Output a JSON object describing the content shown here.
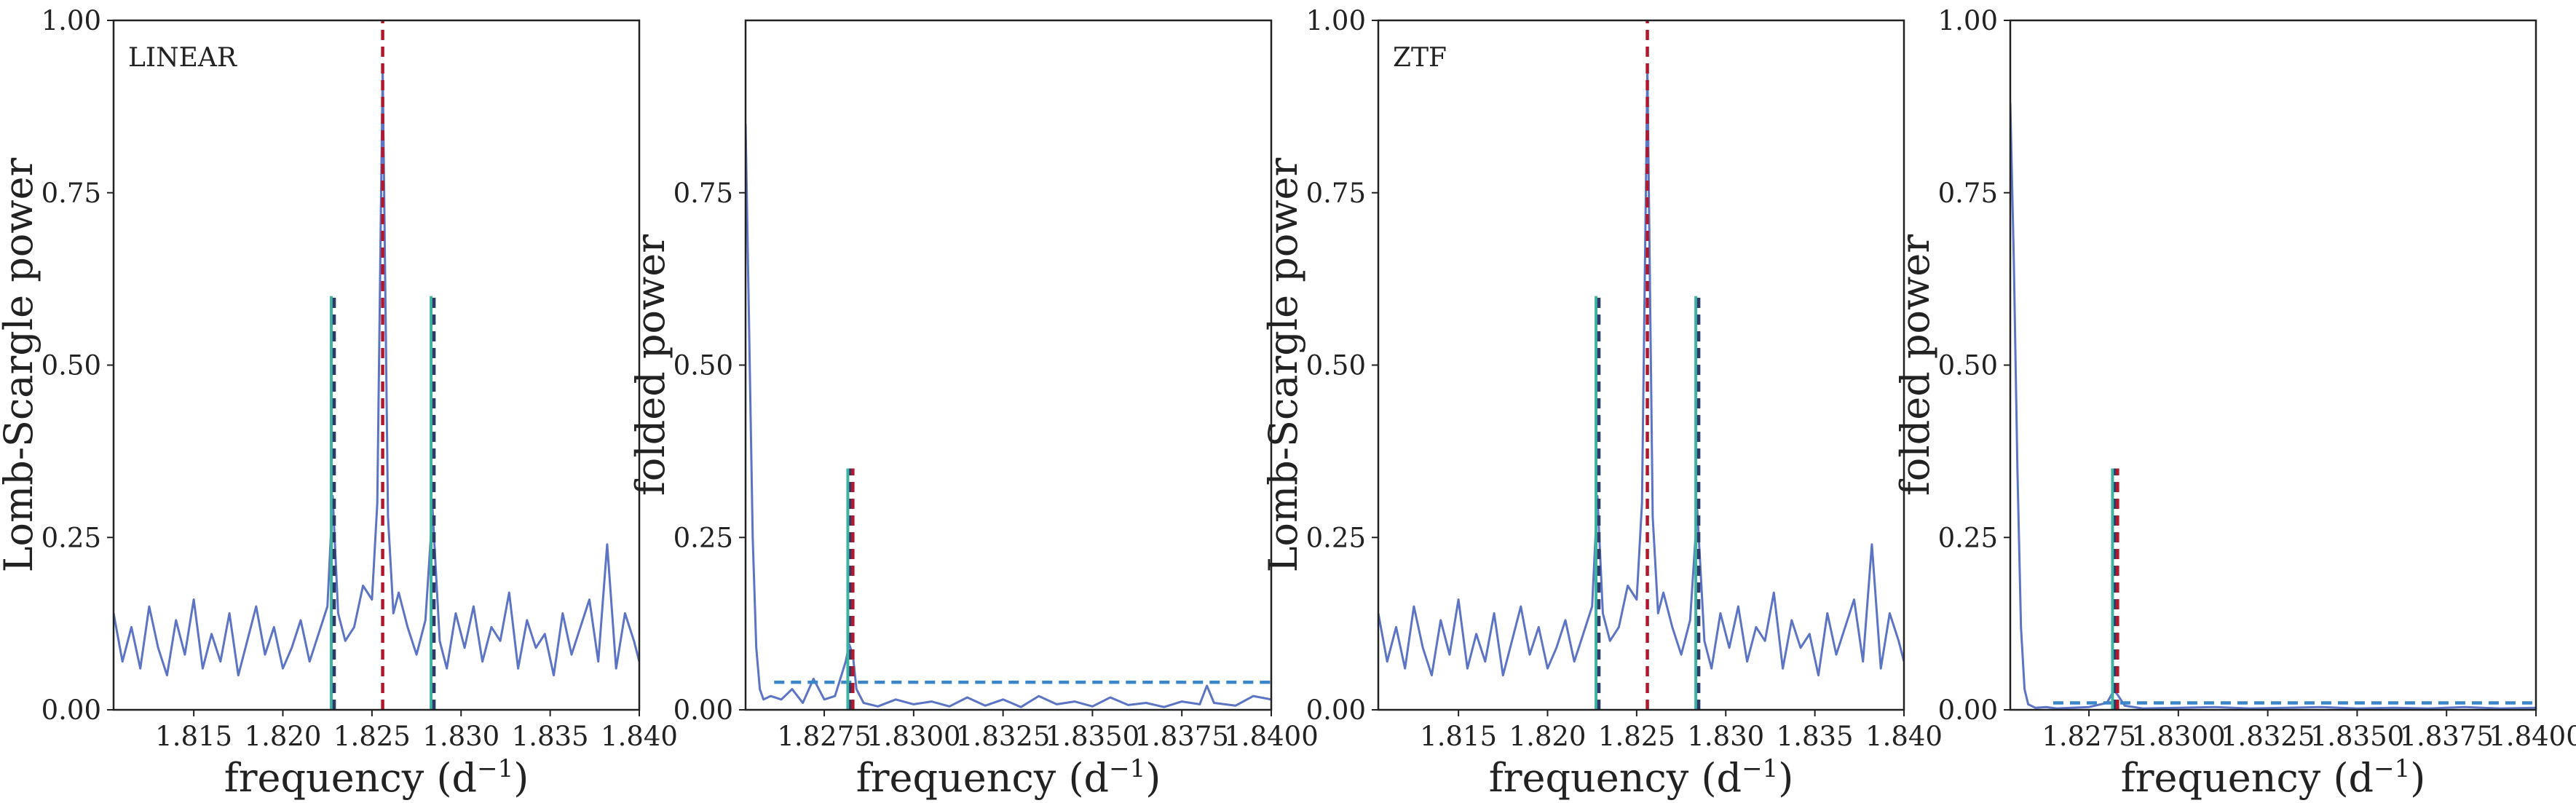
{
  "colors": {
    "series": "#5b74c4",
    "main_peak": "#b2182b",
    "side_peak_teal": "#3fb3a2",
    "side_peak_navy": "#2b3a67",
    "threshold": "#3a86c8"
  },
  "chart_data": [
    {
      "type": "line",
      "title": "LINEAR",
      "xlabel": "frequency (d",
      "xlabel_sup": "−1",
      "xlabel_suffix": ")",
      "ylabel": "Lomb-Scargle power",
      "xlim": [
        1.8105,
        1.84
      ],
      "ylim": [
        0,
        1.0
      ],
      "xticks": [
        1.815,
        1.82,
        1.825,
        1.83,
        1.835,
        1.84
      ],
      "xtick_labels": [
        "1.815",
        "1.820",
        "1.825",
        "1.830",
        "1.835",
        "1.840"
      ],
      "yticks": [
        0,
        0.25,
        0.5,
        0.75,
        1.0
      ],
      "ytick_labels": [
        "0.00",
        "0.25",
        "0.50",
        "0.75",
        "1.00"
      ],
      "main_peak": {
        "x": 1.8256,
        "y": 0.93
      },
      "side_peaks": [
        {
          "x": 1.8228,
          "y": 0.31
        },
        {
          "x": 1.8284,
          "y": 0.29
        }
      ],
      "peak_markers": [
        {
          "x": 1.8256,
          "y_top": 1.0,
          "color": "main_peak"
        },
        {
          "x": 1.8228,
          "y_top": 0.6,
          "color": "side_peak"
        },
        {
          "x": 1.8284,
          "y_top": 0.6,
          "color": "side_peak"
        }
      ],
      "noise": {
        "base": 0.085,
        "amp": 0.055,
        "seed": 11
      },
      "x": [
        1.8105,
        1.811,
        1.8115,
        1.812,
        1.8125,
        1.813,
        1.8135,
        1.814,
        1.8145,
        1.815,
        1.8155,
        1.816,
        1.8165,
        1.817,
        1.8175,
        1.818,
        1.8185,
        1.819,
        1.8195,
        1.82,
        1.8205,
        1.821,
        1.8215,
        1.822,
        1.8225,
        1.8228,
        1.8231,
        1.8235,
        1.824,
        1.8245,
        1.825,
        1.8253,
        1.8256,
        1.8259,
        1.8262,
        1.8265,
        1.827,
        1.8275,
        1.828,
        1.8284,
        1.8288,
        1.8292,
        1.8297,
        1.8302,
        1.8307,
        1.8312,
        1.8317,
        1.8322,
        1.8327,
        1.8332,
        1.8337,
        1.8342,
        1.8347,
        1.8352,
        1.8357,
        1.8362,
        1.8367,
        1.8372,
        1.8377,
        1.8382,
        1.8387,
        1.8392,
        1.8397,
        1.84
      ],
      "y": [
        0.14,
        0.07,
        0.12,
        0.06,
        0.15,
        0.09,
        0.05,
        0.13,
        0.08,
        0.16,
        0.06,
        0.11,
        0.07,
        0.14,
        0.05,
        0.1,
        0.15,
        0.08,
        0.12,
        0.06,
        0.09,
        0.13,
        0.07,
        0.11,
        0.15,
        0.31,
        0.14,
        0.1,
        0.12,
        0.18,
        0.16,
        0.3,
        0.93,
        0.28,
        0.14,
        0.17,
        0.12,
        0.08,
        0.13,
        0.29,
        0.1,
        0.06,
        0.14,
        0.09,
        0.15,
        0.07,
        0.12,
        0.1,
        0.17,
        0.06,
        0.13,
        0.09,
        0.11,
        0.05,
        0.14,
        0.08,
        0.12,
        0.16,
        0.07,
        0.24,
        0.06,
        0.14,
        0.1,
        0.07
      ]
    },
    {
      "type": "line",
      "title": "",
      "xlabel": "frequency (d",
      "xlabel_sup": "−1",
      "xlabel_suffix": ")",
      "ylabel": "folded power",
      "xlim": [
        1.8253,
        1.84
      ],
      "ylim": [
        0,
        1.0
      ],
      "xticks": [
        1.8275,
        1.83,
        1.8325,
        1.835,
        1.8375,
        1.84
      ],
      "xtick_labels": [
        "1.8275",
        "1.8300",
        "1.8325",
        "1.8350",
        "1.8375",
        "1.8400"
      ],
      "yticks": [
        0,
        0.25,
        0.5,
        0.75
      ],
      "ytick_labels": [
        "0.00",
        "0.25",
        "0.50",
        "0.75"
      ],
      "peak_markers": [
        {
          "x": 1.8282,
          "y_top": 0.35,
          "color": "side_peak"
        },
        {
          "x": 1.8283,
          "y_top": 0.35,
          "color": "main_peak"
        }
      ],
      "threshold": 0.04,
      "threshold_start": 1.8261,
      "x": [
        1.8253,
        1.8254,
        1.8255,
        1.8256,
        1.8257,
        1.8258,
        1.826,
        1.8263,
        1.8266,
        1.8269,
        1.8272,
        1.8275,
        1.8278,
        1.8281,
        1.8282,
        1.8283,
        1.8284,
        1.8286,
        1.829,
        1.8295,
        1.83,
        1.8305,
        1.831,
        1.8315,
        1.832,
        1.8325,
        1.833,
        1.8335,
        1.834,
        1.8345,
        1.835,
        1.8355,
        1.836,
        1.8365,
        1.837,
        1.8375,
        1.838,
        1.8382,
        1.8384,
        1.839,
        1.8395,
        1.84
      ],
      "y": [
        0.85,
        0.55,
        0.25,
        0.09,
        0.03,
        0.015,
        0.02,
        0.015,
        0.03,
        0.01,
        0.045,
        0.015,
        0.02,
        0.07,
        0.095,
        0.08,
        0.03,
        0.01,
        0.005,
        0.015,
        0.008,
        0.012,
        0.005,
        0.018,
        0.006,
        0.015,
        0.004,
        0.02,
        0.008,
        0.012,
        0.005,
        0.018,
        0.007,
        0.01,
        0.004,
        0.012,
        0.008,
        0.035,
        0.01,
        0.006,
        0.02,
        0.015
      ]
    },
    {
      "type": "line",
      "title": "ZTF",
      "xlabel": "frequency (d",
      "xlabel_sup": "−1",
      "xlabel_suffix": ")",
      "ylabel": "Lomb-Scargle power",
      "xlim": [
        1.8105,
        1.84
      ],
      "ylim": [
        0,
        1.0
      ],
      "xticks": [
        1.815,
        1.82,
        1.825,
        1.83,
        1.835,
        1.84
      ],
      "xtick_labels": [
        "1.815",
        "1.820",
        "1.825",
        "1.830",
        "1.835",
        "1.840"
      ],
      "yticks": [
        0,
        0.25,
        0.5,
        0.75,
        1.0
      ],
      "ytick_labels": [
        "0.00",
        "0.25",
        "0.50",
        "0.75",
        "1.00"
      ],
      "peak_markers": [
        {
          "x": 1.8256,
          "y_top": 1.0,
          "color": "main_peak"
        },
        {
          "x": 1.8228,
          "y_top": 0.6,
          "color": "side_peak"
        },
        {
          "x": 1.8284,
          "y_top": 0.6,
          "color": "side_peak"
        }
      ],
      "x": [
        1.8105,
        1.811,
        1.8115,
        1.812,
        1.8125,
        1.813,
        1.8135,
        1.814,
        1.8145,
        1.815,
        1.8155,
        1.816,
        1.8165,
        1.817,
        1.8175,
        1.818,
        1.8185,
        1.819,
        1.8195,
        1.82,
        1.8205,
        1.821,
        1.8215,
        1.822,
        1.8225,
        1.8228,
        1.8231,
        1.8235,
        1.824,
        1.8245,
        1.825,
        1.8253,
        1.8256,
        1.8259,
        1.8262,
        1.8265,
        1.827,
        1.8275,
        1.828,
        1.8284,
        1.8288,
        1.8292,
        1.8297,
        1.8302,
        1.8307,
        1.8312,
        1.8317,
        1.8322,
        1.8327,
        1.8332,
        1.8337,
        1.8342,
        1.8347,
        1.8352,
        1.8357,
        1.8362,
        1.8367,
        1.8372,
        1.8377,
        1.8382,
        1.8387,
        1.8392,
        1.8397,
        1.84
      ],
      "y": [
        0.14,
        0.07,
        0.12,
        0.06,
        0.15,
        0.09,
        0.05,
        0.13,
        0.08,
        0.16,
        0.06,
        0.11,
        0.07,
        0.14,
        0.05,
        0.1,
        0.15,
        0.08,
        0.12,
        0.06,
        0.09,
        0.13,
        0.07,
        0.11,
        0.15,
        0.31,
        0.14,
        0.1,
        0.12,
        0.18,
        0.16,
        0.3,
        0.93,
        0.28,
        0.14,
        0.17,
        0.12,
        0.08,
        0.13,
        0.29,
        0.1,
        0.06,
        0.14,
        0.09,
        0.15,
        0.07,
        0.12,
        0.1,
        0.17,
        0.06,
        0.13,
        0.09,
        0.11,
        0.05,
        0.14,
        0.08,
        0.12,
        0.16,
        0.07,
        0.24,
        0.06,
        0.14,
        0.1,
        0.07
      ]
    },
    {
      "type": "line",
      "title": "",
      "xlabel": "frequency (d",
      "xlabel_sup": "−1",
      "xlabel_suffix": ")",
      "ylabel": "folded power",
      "xlim": [
        1.8253,
        1.84
      ],
      "ylim": [
        0,
        1.0
      ],
      "xticks": [
        1.8275,
        1.83,
        1.8325,
        1.835,
        1.8375,
        1.84
      ],
      "xtick_labels": [
        "1.8275",
        "1.8300",
        "1.8325",
        "1.8350",
        "1.8375",
        "1.8400"
      ],
      "yticks": [
        0,
        0.25,
        0.5,
        0.75,
        1.0
      ],
      "ytick_labels": [
        "0.00",
        "0.25",
        "0.50",
        "0.75",
        "1.00"
      ],
      "peak_markers": [
        {
          "x": 1.8282,
          "y_top": 0.35,
          "color": "side_peak"
        },
        {
          "x": 1.8283,
          "y_top": 0.35,
          "color": "main_peak"
        }
      ],
      "threshold": 0.01,
      "threshold_start": 1.8265,
      "x": [
        1.8253,
        1.8254,
        1.8255,
        1.8256,
        1.8257,
        1.8258,
        1.826,
        1.8263,
        1.8266,
        1.827,
        1.8275,
        1.828,
        1.8282,
        1.8283,
        1.8285,
        1.829,
        1.83,
        1.831,
        1.832,
        1.833,
        1.834,
        1.835,
        1.836,
        1.837,
        1.838,
        1.839,
        1.84
      ],
      "y": [
        0.88,
        0.65,
        0.35,
        0.12,
        0.03,
        0.008,
        0.003,
        0.004,
        0.002,
        0.003,
        0.004,
        0.01,
        0.028,
        0.022,
        0.006,
        0.002,
        0.003,
        0.004,
        0.002,
        0.003,
        0.004,
        0.002,
        0.003,
        0.002,
        0.004,
        0.002,
        0.003
      ]
    }
  ]
}
